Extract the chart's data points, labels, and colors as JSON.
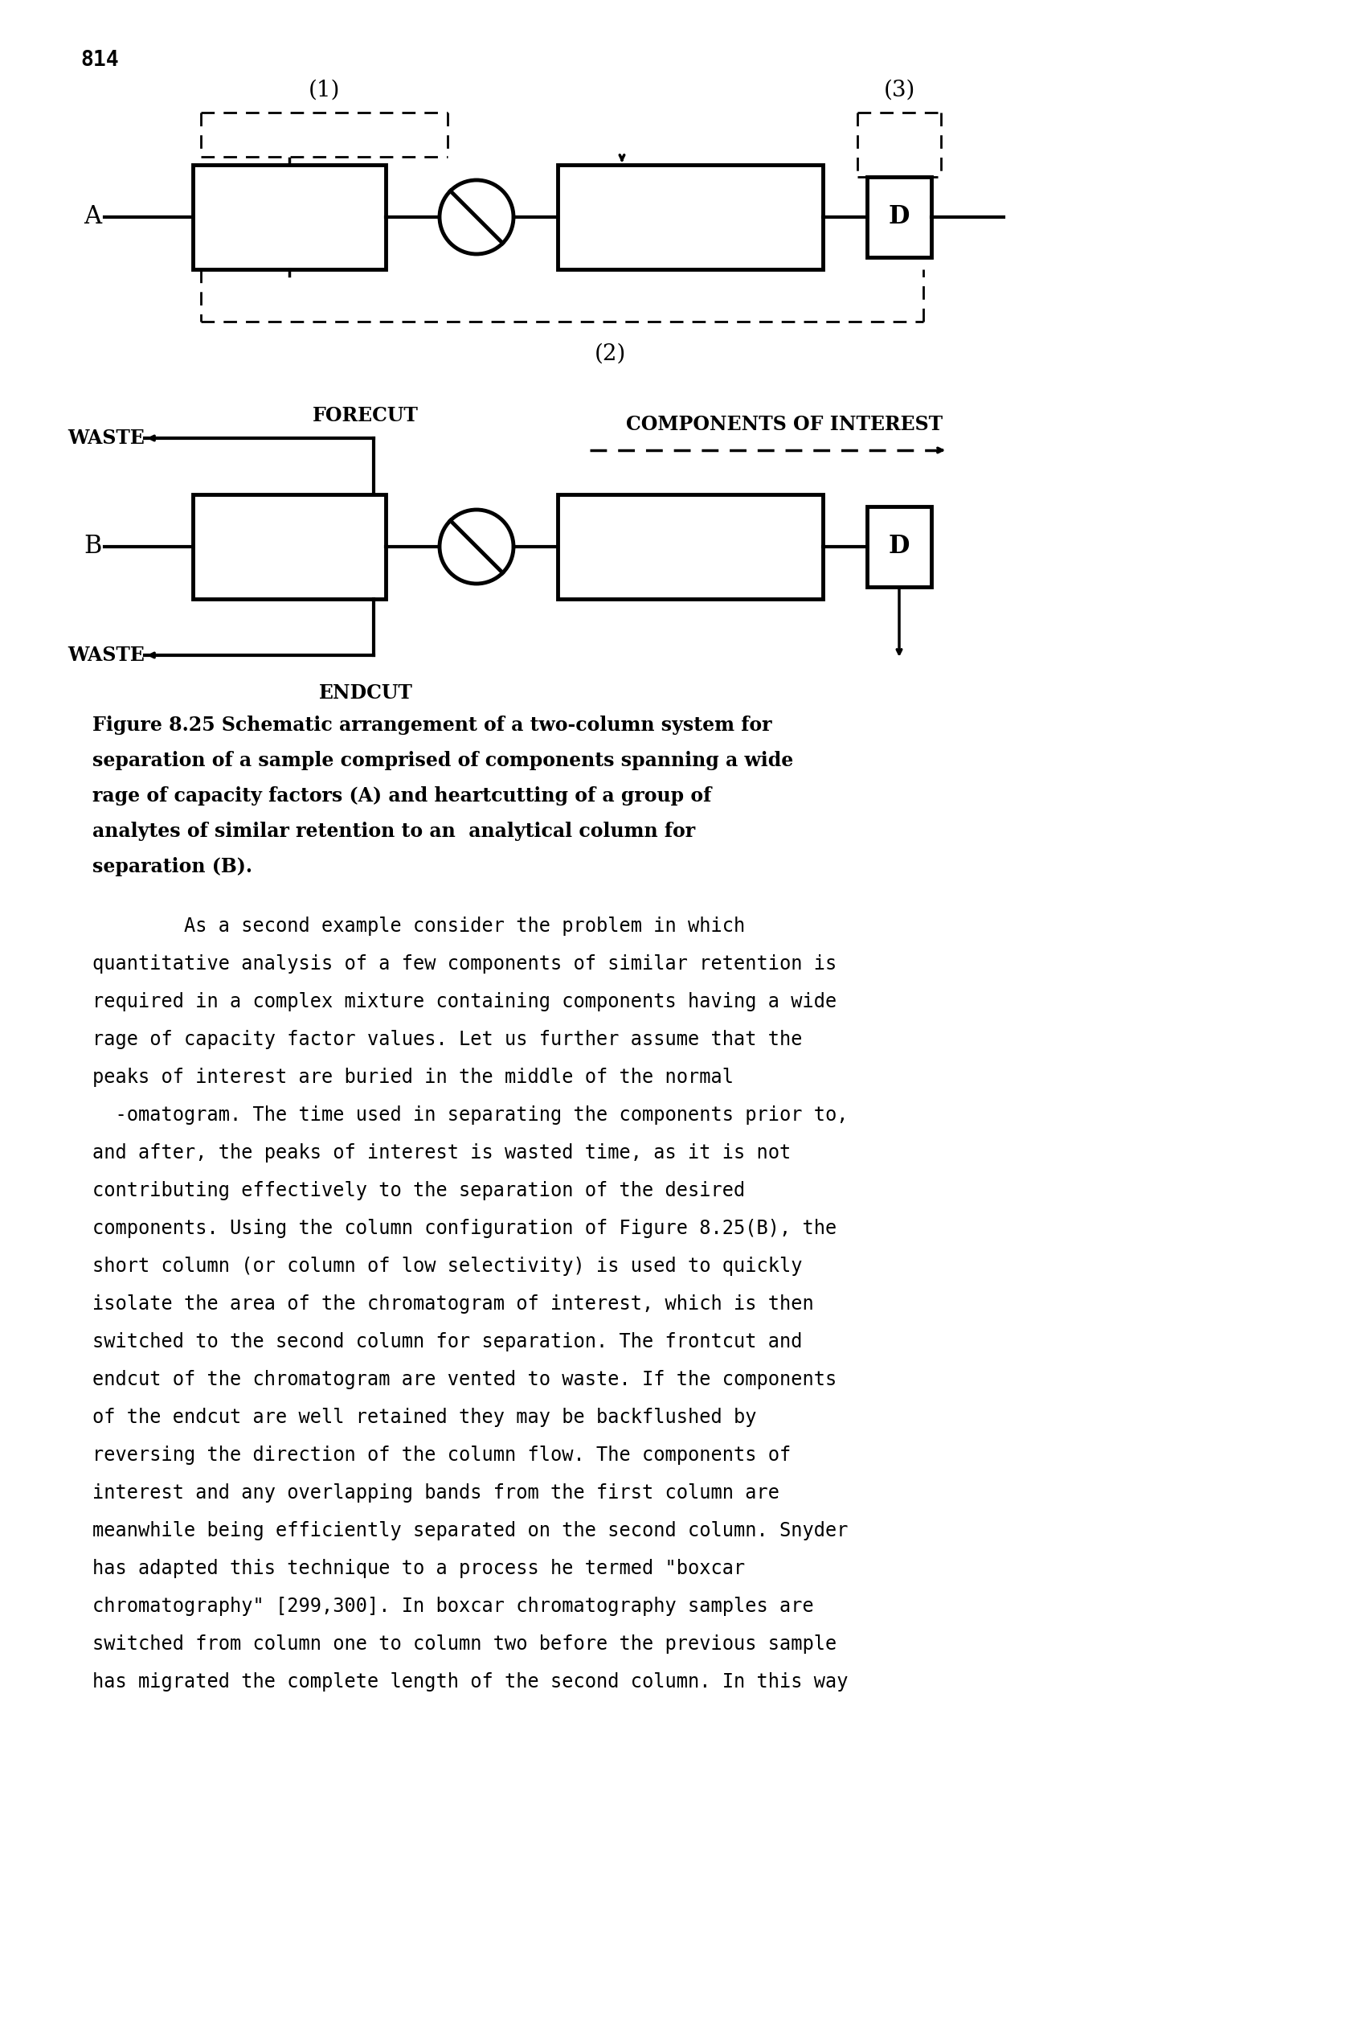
{
  "page_number": "814",
  "bg_color": "#ffffff",
  "figure_caption_lines": [
    "Figure 8.25 Schematic arrangement of a two-column system for",
    "separation of a sample comprised of components spanning a wide",
    "rage of capacity factors (A) and heartcutting of a group of",
    "analytes of similar retention to an  analytical column for",
    "separation (B)."
  ],
  "body_text": [
    "        As a second example consider the problem in which",
    "quantitative analysis of a few components of similar retention is",
    "required in a complex mixture containing components having a wide",
    "rage of capacity factor values. Let us further assume that the",
    "peaks of interest are buried in the middle of the normal",
    "  -omatogram. The time used in separating the components prior to,",
    "and after, the peaks of interest is wasted time, as it is not",
    "contributing effectively to the separation of the desired",
    "components. Using the column configuration of Figure 8.25(B), the",
    "short column (or column of low selectivity) is used to quickly",
    "isolate the area of the chromatogram of interest, which is then",
    "switched to the second column for separation. The frontcut and",
    "endcut of the chromatogram are vented to waste. If the components",
    "of the endcut are well retained they may be backflushed by",
    "reversing the direction of the column flow. The components of",
    "interest and any overlapping bands from the first column are",
    "meanwhile being efficiently separated on the second column. Snyder",
    "has adapted this technique to a process he termed \"boxcar",
    "chromatography\" [299,300]. In boxcar chromatography samples are",
    "switched from column one to column two before the previous sample",
    "has migrated the complete length of the second column. In this way"
  ]
}
